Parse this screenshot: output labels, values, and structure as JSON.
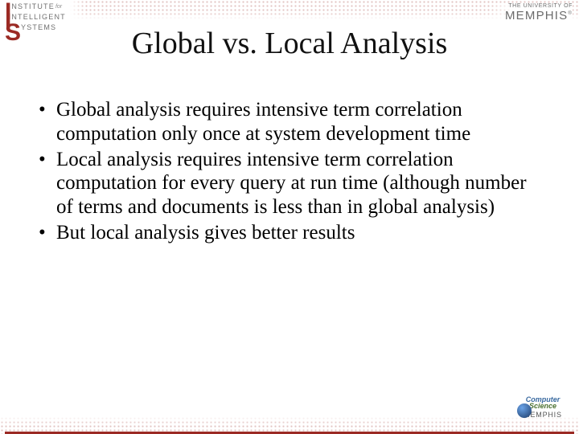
{
  "header": {
    "left_logo": {
      "line1_word": "NSTITUTE",
      "line1_for": "for",
      "line2_word": "NTELLIGENT",
      "line3_word": "YSTEMS",
      "big_letters": [
        "I",
        "I",
        "S"
      ],
      "accent_color": "#9b2a24",
      "text_color": "#707070"
    },
    "right_logo": {
      "line1": "THE UNIVERSITY OF",
      "line2": "MEMPHIS",
      "color": "#6b6b6b"
    }
  },
  "title": "Global vs. Local Analysis",
  "title_fontsize": 38,
  "body_fontsize": 25,
  "text_color": "#000000",
  "background_color": "#ffffff",
  "bullets": [
    "Global analysis requires intensive term correlation computation only once at system development time",
    "Local analysis requires intensive term correlation computation for every query at run time (although number of terms and documents is less than in global analysis)",
    "But local analysis gives better results"
  ],
  "footer": {
    "band_color": "#9b2a24",
    "logo": {
      "line1": "Computer",
      "line2": "Science",
      "line3": "MEMPHIS"
    }
  }
}
